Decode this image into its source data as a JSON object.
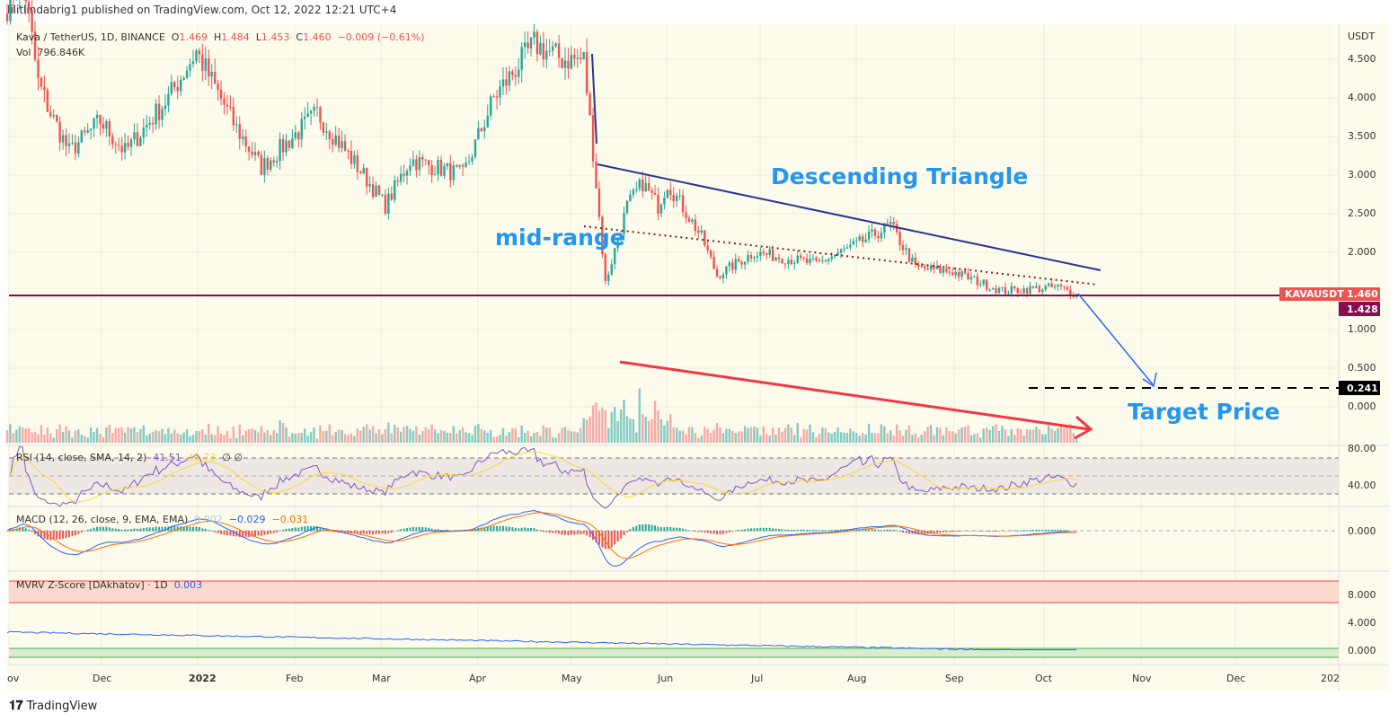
{
  "publisher_line": "lilitlindabrig1 published on TradingView.com, Oct 12, 2022 12:21 UTC+4",
  "legend": {
    "symbol": "Kava / TetherUS, 1D, BINANCE",
    "o_label": "O",
    "o": "1.469",
    "h_label": "H",
    "h": "1.484",
    "l_label": "L",
    "l": "1.453",
    "c_label": "C",
    "c": "1.460",
    "change": "−0.009 (−0.61%)",
    "vol_label": "Vol",
    "vol": "796.846K"
  },
  "indicators": {
    "rsi": {
      "label": "RSI (14, close, SMA, 14, 2)",
      "v1": "41.51",
      "v2": "45.73",
      "v3": "∅ ∅",
      "ticks": [
        "80.00",
        "40.00"
      ]
    },
    "macd": {
      "label": "MACD (12, 26, close, 9, EMA, EMA)",
      "hist": "0.002",
      "macd": "−0.029",
      "signal": "−0.031",
      "ticks": [
        "0.000"
      ]
    },
    "mvrv": {
      "label": "MVRV Z-Score [DAkhatov] · 1D",
      "value": "0.003",
      "ticks": [
        "8.000",
        "4.000",
        "0.000"
      ]
    }
  },
  "colors": {
    "up": "#26a69a",
    "down": "#ef5350",
    "background": "#fdfbeb",
    "annotation_blue": "#2196f3",
    "trend_line": "#283593",
    "support": "#880e4f",
    "arrow_red": "#f23645"
  },
  "chart_data": {
    "type": "candlestick",
    "currency": "USDT",
    "price_ticks": [
      "4.500",
      "4.000",
      "3.500",
      "3.000",
      "2.500",
      "2.000",
      "1.000",
      "0.500",
      "0.000"
    ],
    "x_ticks": [
      "ov",
      "Dec",
      "2022",
      "Feb",
      "Mar",
      "Apr",
      "May",
      "Jun",
      "Jul",
      "Aug",
      "Sep",
      "Oct",
      "Nov",
      "Dec",
      "202"
    ],
    "approx_close_keyframes": [
      [
        "2021-11-01",
        5.2
      ],
      [
        "2021-11-06",
        5.6
      ],
      [
        "2021-11-11",
        4.2
      ],
      [
        "2021-11-15",
        3.8
      ],
      [
        "2021-11-21",
        3.3
      ],
      [
        "2021-12-01",
        3.7
      ],
      [
        "2021-12-09",
        3.3
      ],
      [
        "2021-12-23",
        4.0
      ],
      [
        "2022-01-01",
        4.6
      ],
      [
        "2022-01-14",
        3.6
      ],
      [
        "2022-01-22",
        3.1
      ],
      [
        "2022-02-09",
        3.8
      ],
      [
        "2022-02-24",
        3.0
      ],
      [
        "2022-03-03",
        2.6
      ],
      [
        "2022-03-11",
        3.2
      ],
      [
        "2022-03-28",
        3.0
      ],
      [
        "2022-04-07",
        4.0
      ],
      [
        "2022-04-20",
        4.7
      ],
      [
        "2022-04-29",
        4.5
      ],
      [
        "2022-05-06",
        4.5
      ],
      [
        "2022-05-09",
        3.3
      ],
      [
        "2022-05-13",
        1.6
      ],
      [
        "2022-05-20",
        2.6
      ],
      [
        "2022-05-25",
        2.9
      ],
      [
        "2022-05-30",
        2.6
      ],
      [
        "2022-06-02",
        2.9
      ],
      [
        "2022-06-13",
        2.2
      ],
      [
        "2022-06-18",
        1.7
      ],
      [
        "2022-06-30",
        2.0
      ],
      [
        "2022-07-20",
        1.85
      ],
      [
        "2022-08-02",
        2.1
      ],
      [
        "2022-08-13",
        2.35
      ],
      [
        "2022-08-21",
        1.8
      ],
      [
        "2022-09-02",
        1.75
      ],
      [
        "2022-09-18",
        1.5
      ],
      [
        "2022-10-06",
        1.55
      ],
      [
        "2022-10-12",
        1.46
      ]
    ],
    "last_price": {
      "label": "KAVAUSDT",
      "value": "1.460"
    },
    "support_level": "1.428",
    "target_level": "0.241",
    "annotations": {
      "pattern": "Descending Triangle",
      "mid": "mid-range",
      "target": "Target Price"
    }
  },
  "footer": {
    "brand": "TradingView"
  }
}
